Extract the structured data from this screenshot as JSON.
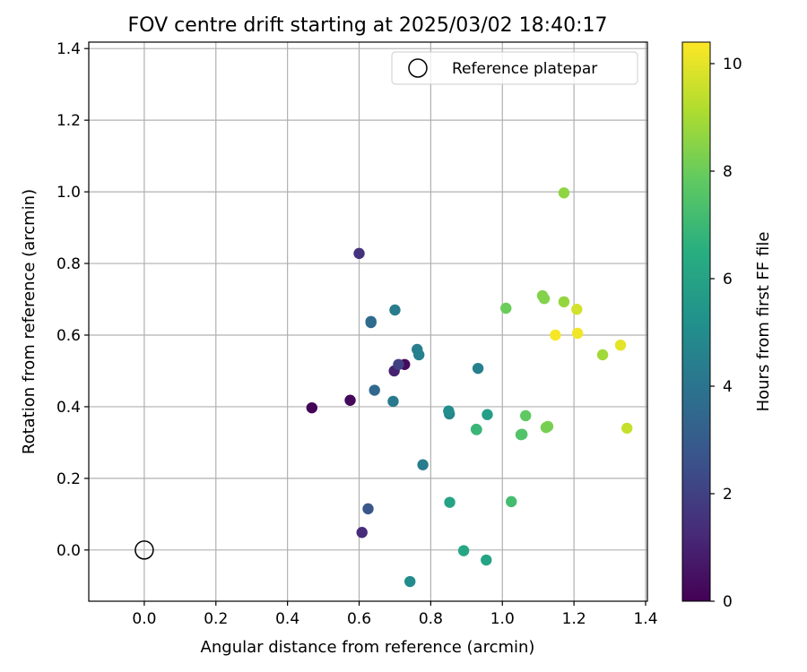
{
  "chart_data": {
    "type": "scatter",
    "title": "FOV centre drift starting at 2025/03/02 18:40:17",
    "xlabel": "Angular distance from reference (arcmin)",
    "ylabel": "Rotation from reference (arcmin)",
    "xlim": [
      -0.155,
      1.405
    ],
    "ylim": [
      -0.143,
      1.418
    ],
    "xticks": [
      "0.0",
      "0.2",
      "0.4",
      "0.6",
      "0.8",
      "1.0",
      "1.2",
      "1.4"
    ],
    "yticks": [
      "0.0",
      "0.2",
      "0.4",
      "0.6",
      "0.8",
      "1.0",
      "1.2",
      "1.4"
    ],
    "grid": true,
    "legend": {
      "position": "top-right",
      "entries": [
        {
          "label": "Reference platepar",
          "marker": "open-circle"
        }
      ]
    },
    "reference_point": {
      "x": 0.0,
      "y": 0.0
    },
    "colorbar": {
      "label": "Hours from first FF file",
      "colormap": "viridis",
      "range": [
        0,
        10.4
      ],
      "ticks": [
        "0",
        "2",
        "4",
        "6",
        "8",
        "10"
      ]
    },
    "points": [
      {
        "x": 0.468,
        "y": 0.397,
        "c": 0.1
      },
      {
        "x": 0.575,
        "y": 0.418,
        "c": 0.2
      },
      {
        "x": 0.727,
        "y": 0.518,
        "c": 0.3
      },
      {
        "x": 0.698,
        "y": 0.5,
        "c": 1.0
      },
      {
        "x": 0.608,
        "y": 0.049,
        "c": 1.3
      },
      {
        "x": 0.6,
        "y": 0.828,
        "c": 1.5
      },
      {
        "x": 0.71,
        "y": 0.518,
        "c": 2.0
      },
      {
        "x": 0.625,
        "y": 0.115,
        "c": 2.8
      },
      {
        "x": 0.643,
        "y": 0.446,
        "c": 3.5
      },
      {
        "x": 0.633,
        "y": 0.635,
        "c": 3.5
      },
      {
        "x": 0.633,
        "y": 0.638,
        "c": 3.6
      },
      {
        "x": 0.695,
        "y": 0.415,
        "c": 4.2
      },
      {
        "x": 0.7,
        "y": 0.67,
        "c": 4.3
      },
      {
        "x": 0.778,
        "y": 0.238,
        "c": 4.3
      },
      {
        "x": 0.762,
        "y": 0.56,
        "c": 4.4
      },
      {
        "x": 0.767,
        "y": 0.545,
        "c": 4.5
      },
      {
        "x": 0.932,
        "y": 0.507,
        "c": 4.5
      },
      {
        "x": 0.852,
        "y": 0.38,
        "c": 4.8
      },
      {
        "x": 0.85,
        "y": 0.388,
        "c": 5.0
      },
      {
        "x": 0.742,
        "y": -0.088,
        "c": 5.0
      },
      {
        "x": 0.958,
        "y": 0.378,
        "c": 5.8
      },
      {
        "x": 0.853,
        "y": 0.133,
        "c": 6.0
      },
      {
        "x": 0.955,
        "y": -0.028,
        "c": 6.0
      },
      {
        "x": 0.892,
        "y": -0.002,
        "c": 6.2
      },
      {
        "x": 0.928,
        "y": 0.336,
        "c": 6.8
      },
      {
        "x": 0.927,
        "y": 0.337,
        "c": 6.9
      },
      {
        "x": 1.025,
        "y": 0.135,
        "c": 7.2
      },
      {
        "x": 1.055,
        "y": 0.323,
        "c": 7.5
      },
      {
        "x": 1.052,
        "y": 0.322,
        "c": 7.5
      },
      {
        "x": 1.065,
        "y": 0.375,
        "c": 7.8
      },
      {
        "x": 1.01,
        "y": 0.675,
        "c": 8.0
      },
      {
        "x": 1.127,
        "y": 0.345,
        "c": 8.3
      },
      {
        "x": 1.122,
        "y": 0.342,
        "c": 8.2
      },
      {
        "x": 1.112,
        "y": 0.71,
        "c": 8.4
      },
      {
        "x": 1.117,
        "y": 0.702,
        "c": 8.4
      },
      {
        "x": 1.172,
        "y": 0.997,
        "c": 8.6
      },
      {
        "x": 1.172,
        "y": 0.693,
        "c": 8.7
      },
      {
        "x": 1.28,
        "y": 0.545,
        "c": 8.9
      },
      {
        "x": 1.348,
        "y": 0.34,
        "c": 9.5
      },
      {
        "x": 1.208,
        "y": 0.672,
        "c": 9.7
      },
      {
        "x": 1.33,
        "y": 0.572,
        "c": 10.0
      },
      {
        "x": 1.21,
        "y": 0.605,
        "c": 10.2
      },
      {
        "x": 1.148,
        "y": 0.6,
        "c": 10.3
      }
    ]
  }
}
